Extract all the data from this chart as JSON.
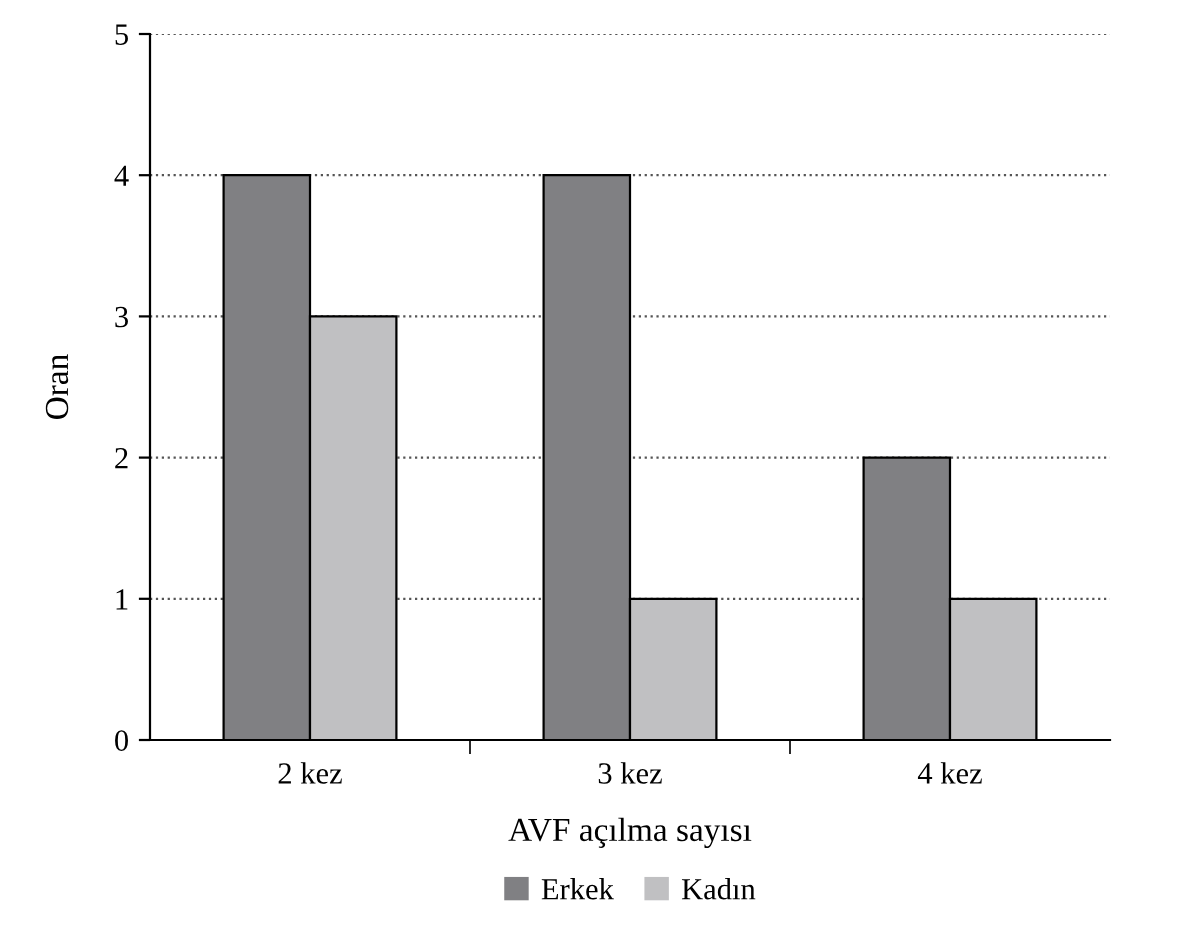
{
  "chart_data": {
    "type": "bar",
    "xlabel": "AVF açılma sayısı",
    "ylabel": "Oran",
    "categories": [
      "2 kez",
      "3 kez",
      "4 kez"
    ],
    "series": [
      {
        "name": "Erkek",
        "color": "#808083",
        "values": [
          4,
          4,
          2
        ]
      },
      {
        "name": "Kadın",
        "color": "#c0c0c2",
        "values": [
          3,
          1,
          1
        ]
      }
    ],
    "ylim": [
      0,
      5
    ],
    "yticks": [
      0,
      1,
      2,
      3,
      4,
      5
    ],
    "grid": "y",
    "legend": "bottom"
  }
}
